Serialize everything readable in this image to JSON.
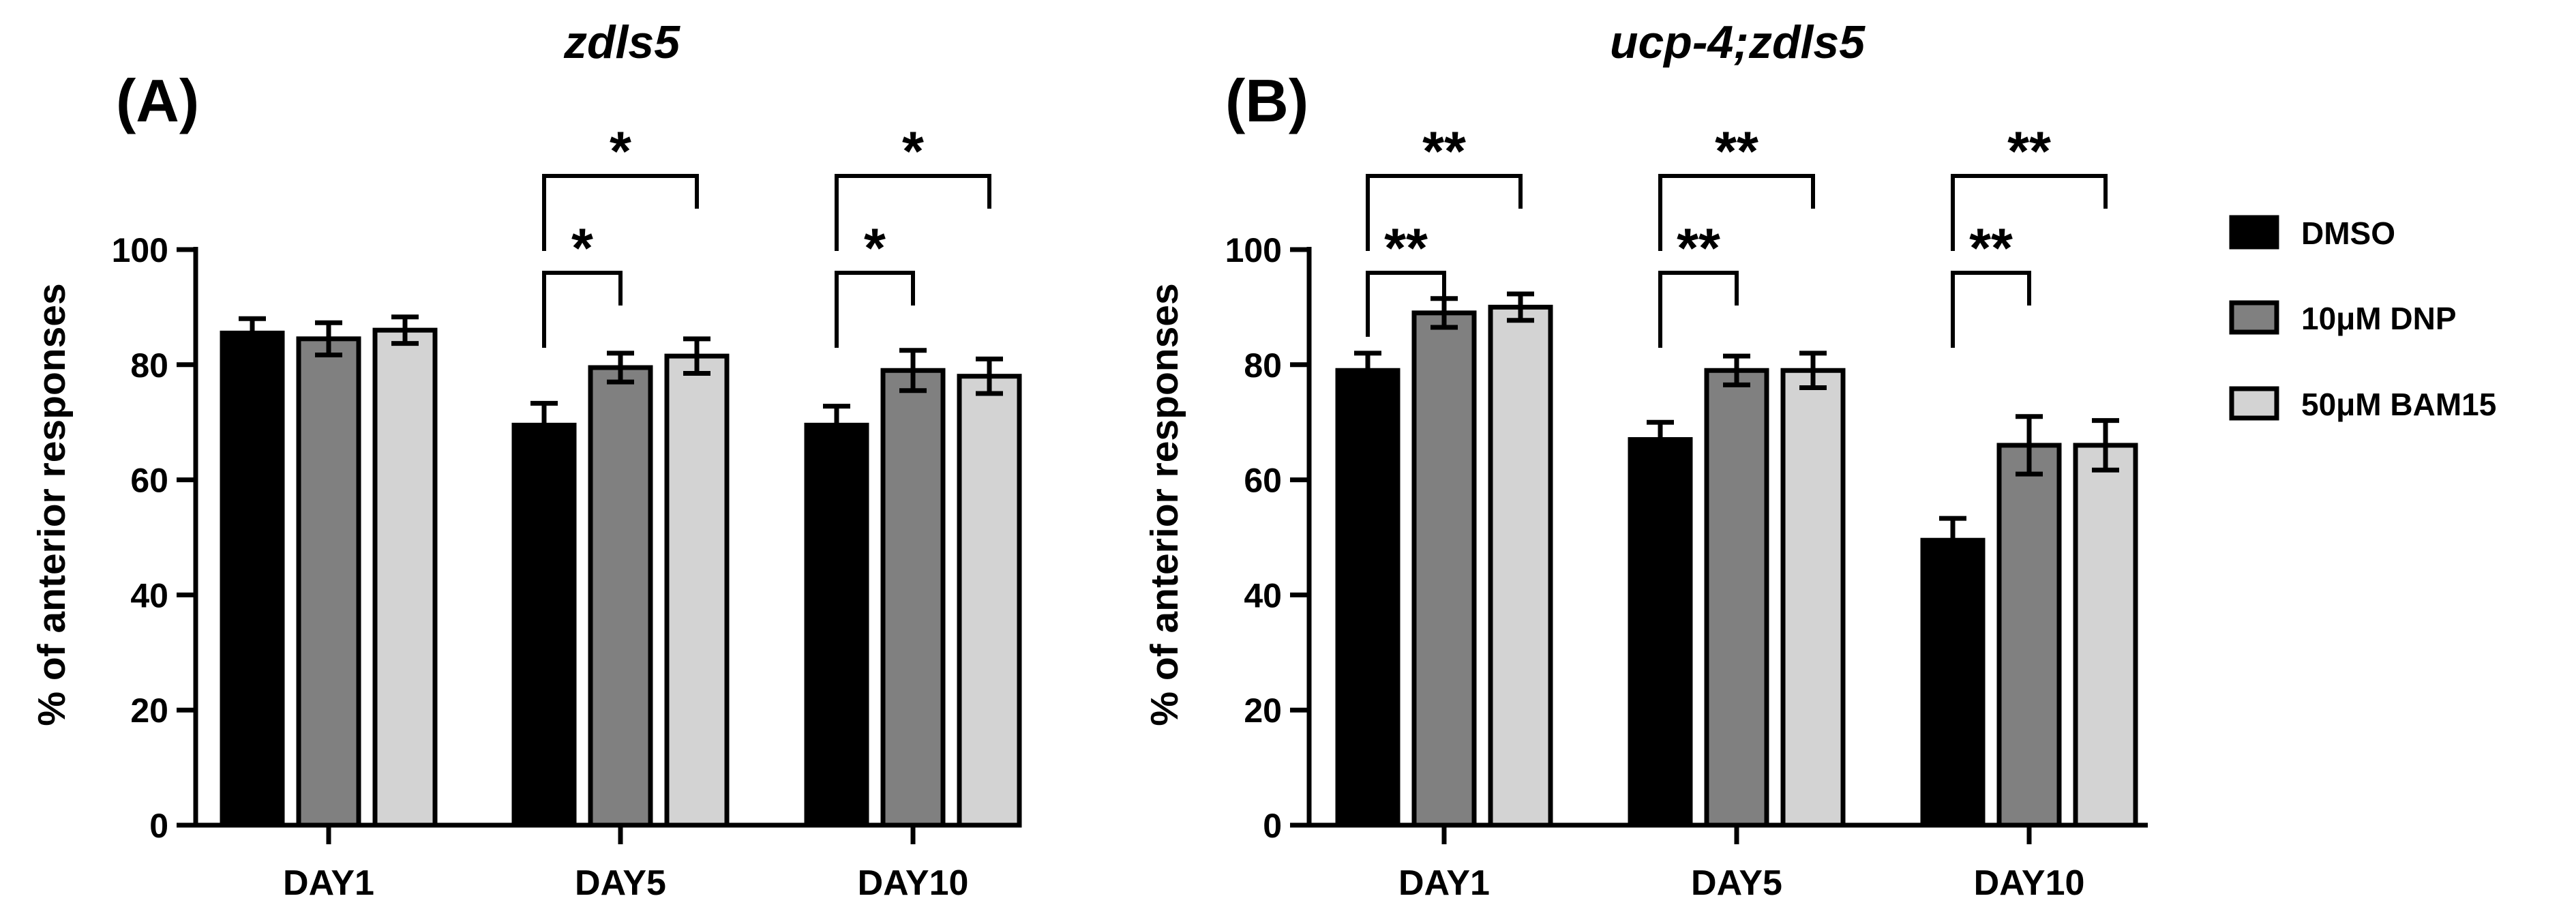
{
  "legend": {
    "items": [
      {
        "label": "DMSO",
        "color": "#000000"
      },
      {
        "label": "10μM DNP",
        "color": "#808080"
      },
      {
        "label": "50μM BAM15",
        "color": "#d3d3d3"
      }
    ]
  },
  "chart_data": [
    {
      "type": "bar",
      "panel_label": "(A)",
      "title": "zdls5",
      "xlabel": "",
      "ylabel": "% of anterior responses",
      "ylim": [
        0,
        100
      ],
      "yticks": [
        0,
        20,
        40,
        60,
        80,
        100
      ],
      "categories": [
        "DAY1",
        "DAY5",
        "DAY10"
      ],
      "series": [
        {
          "name": "DMSO",
          "color": "#000000",
          "values": [
            85.5,
            69.5,
            69.5
          ],
          "errors": [
            2.5,
            3.8,
            3.3
          ]
        },
        {
          "name": "10μM DNP",
          "color": "#808080",
          "values": [
            84.5,
            79.5,
            79.0
          ],
          "errors": [
            2.8,
            2.5,
            3.5
          ]
        },
        {
          "name": "50μM BAM15",
          "color": "#d3d3d3",
          "values": [
            86.0,
            81.5,
            78.0
          ],
          "errors": [
            2.3,
            3.0,
            3.0
          ]
        }
      ],
      "significance": [
        {
          "category": "DAY5",
          "from": 0,
          "to": 1,
          "label": "*",
          "level": 1
        },
        {
          "category": "DAY5",
          "from": 0,
          "to": 2,
          "label": "*",
          "level": 2
        },
        {
          "category": "DAY10",
          "from": 0,
          "to": 1,
          "label": "*",
          "level": 1
        },
        {
          "category": "DAY10",
          "from": 0,
          "to": 2,
          "label": "*",
          "level": 2
        }
      ]
    },
    {
      "type": "bar",
      "panel_label": "(B)",
      "title": "ucp-4;zdls5",
      "xlabel": "",
      "ylabel": "% of anterior responses",
      "ylim": [
        0,
        100
      ],
      "yticks": [
        0,
        20,
        40,
        60,
        80,
        100
      ],
      "categories": [
        "DAY1",
        "DAY5",
        "DAY10"
      ],
      "series": [
        {
          "name": "DMSO",
          "color": "#000000",
          "values": [
            79.0,
            67.0,
            49.5
          ],
          "errors": [
            3.0,
            3.0,
            3.8
          ]
        },
        {
          "name": "10μM DNP",
          "color": "#808080",
          "values": [
            89.0,
            79.0,
            66.0
          ],
          "errors": [
            2.5,
            2.5,
            5.0
          ]
        },
        {
          "name": "50μM BAM15",
          "color": "#d3d3d3",
          "values": [
            90.0,
            79.0,
            66.0
          ],
          "errors": [
            2.3,
            3.0,
            4.3
          ]
        }
      ],
      "significance": [
        {
          "category": "DAY1",
          "from": 0,
          "to": 1,
          "label": "**",
          "level": 1
        },
        {
          "category": "DAY1",
          "from": 0,
          "to": 2,
          "label": "**",
          "level": 2
        },
        {
          "category": "DAY5",
          "from": 0,
          "to": 1,
          "label": "**",
          "level": 1
        },
        {
          "category": "DAY5",
          "from": 0,
          "to": 2,
          "label": "**",
          "level": 2
        },
        {
          "category": "DAY10",
          "from": 0,
          "to": 1,
          "label": "**",
          "level": 1
        },
        {
          "category": "DAY10",
          "from": 0,
          "to": 2,
          "label": "**",
          "level": 2
        }
      ]
    }
  ]
}
